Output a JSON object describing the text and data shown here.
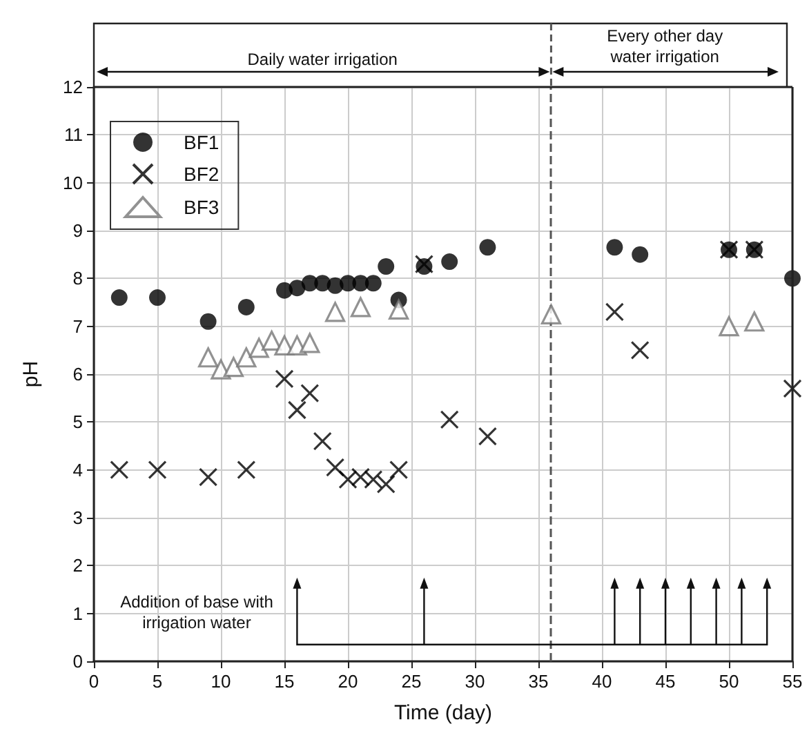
{
  "chart_data": {
    "type": "scatter",
    "xlabel": "Time (day)",
    "ylabel": "pH",
    "xlim": [
      0,
      55
    ],
    "xticks": [
      0,
      5,
      10,
      15,
      20,
      25,
      30,
      35,
      40,
      45,
      50,
      55
    ],
    "ylim": [
      0,
      12
    ],
    "yticks": [
      0,
      1,
      2,
      3,
      4,
      5,
      6,
      7,
      8,
      9,
      10,
      11,
      12
    ],
    "grid": true,
    "legend": "top left",
    "annotations": [
      "Daily water irrigation",
      "Every other day water irrigation",
      "Addition of base with irrigation water"
    ],
    "ref_lines": [
      {
        "axis": "x",
        "value": 36,
        "line_style": "dashed",
        "color": "#555555"
      }
    ],
    "series": [
      {
        "name": "BF1",
        "color": "#000000",
        "marker": "circle",
        "x": [
          2,
          5,
          9,
          12,
          15,
          16,
          17,
          18,
          19,
          20,
          21,
          22,
          23,
          24,
          26,
          28,
          31,
          41,
          43,
          50,
          52,
          55
        ],
        "values": [
          7.6,
          7.6,
          7.1,
          7.4,
          7.75,
          7.8,
          7.9,
          7.9,
          7.85,
          7.9,
          7.9,
          7.9,
          8.25,
          7.55,
          8.25,
          8.35,
          8.65,
          8.65,
          8.5,
          8.6,
          8.6,
          8.0
        ]
      },
      {
        "name": "BF2",
        "color": "#000000",
        "marker": "cross",
        "x": [
          2,
          5,
          9,
          12,
          15,
          16,
          17,
          18,
          19,
          20,
          21,
          22,
          23,
          24,
          26,
          28,
          31,
          41,
          43,
          50,
          52,
          55
        ],
        "values": [
          4.0,
          4.0,
          3.85,
          4.0,
          5.9,
          5.25,
          5.6,
          4.6,
          4.05,
          3.8,
          3.85,
          3.8,
          3.7,
          4.0,
          8.3,
          5.05,
          4.7,
          7.3,
          6.5,
          8.6,
          8.6,
          5.7
        ]
      },
      {
        "name": "BF3",
        "color": "#777777",
        "marker": "triangle",
        "x": [
          9,
          10,
          11,
          12,
          13,
          14,
          15,
          16,
          17,
          19,
          21,
          24,
          36,
          50,
          52
        ],
        "values": [
          6.35,
          6.1,
          6.15,
          6.35,
          6.55,
          6.7,
          6.6,
          6.6,
          6.65,
          7.3,
          7.4,
          7.35,
          7.25,
          7.0,
          7.1
        ]
      }
    ]
  }
}
